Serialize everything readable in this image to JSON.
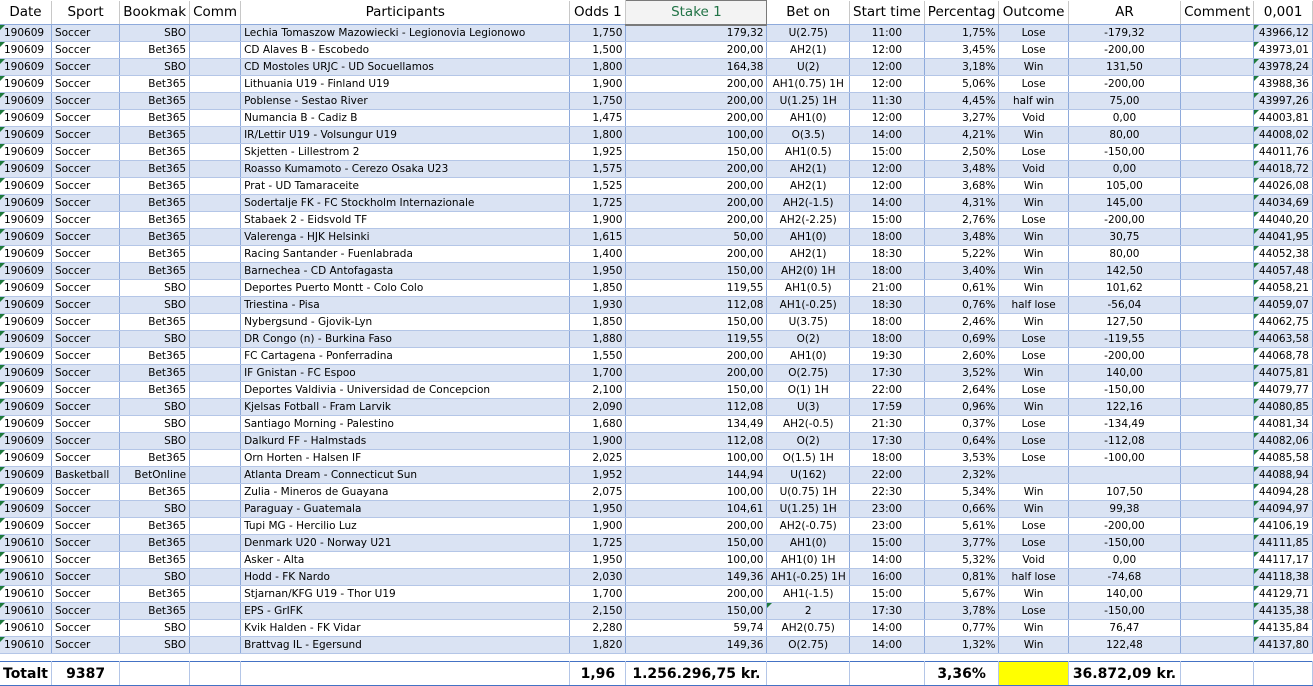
{
  "headers": [
    "Date",
    "Sport",
    "Bookmak",
    "Comm",
    "Participants",
    "Odds 1",
    "Stake 1",
    "Bet on",
    "Start time",
    "Percentag",
    "Outcome",
    "AR",
    "Comment",
    "0,001"
  ],
  "rows": [
    [
      "190609",
      "Soccer",
      "SBO",
      "",
      "Lechia Tomaszow Mazowiecki - Legionovia Legionowo",
      "1,750",
      "179,32",
      "U(2.75)",
      "11:00",
      "1,75%",
      "Lose",
      "-179,32",
      "",
      "43966,12"
    ],
    [
      "190609",
      "Soccer",
      "Bet365",
      "",
      "CD Alaves B - Escobedo",
      "1,500",
      "200,00",
      "AH2(1)",
      "12:00",
      "3,45%",
      "Lose",
      "-200,00",
      "",
      "43973,01"
    ],
    [
      "190609",
      "Soccer",
      "SBO",
      "",
      "CD Mostoles URJC - UD Socuellamos",
      "1,800",
      "164,38",
      "U(2)",
      "12:00",
      "3,18%",
      "Win",
      "131,50",
      "",
      "43978,24"
    ],
    [
      "190609",
      "Soccer",
      "Bet365",
      "",
      "Lithuania U19 - Finland U19",
      "1,900",
      "200,00",
      "AH1(0.75) 1H",
      "12:00",
      "5,06%",
      "Lose",
      "-200,00",
      "",
      "43988,36"
    ],
    [
      "190609",
      "Soccer",
      "Bet365",
      "",
      "Poblense - Sestao River",
      "1,750",
      "200,00",
      "U(1.25) 1H",
      "11:30",
      "4,45%",
      "half win",
      "75,00",
      "",
      "43997,26"
    ],
    [
      "190609",
      "Soccer",
      "Bet365",
      "",
      "Numancia B - Cadiz B",
      "1,475",
      "200,00",
      "AH1(0)",
      "12:00",
      "3,27%",
      "Void",
      "0,00",
      "",
      "44003,81"
    ],
    [
      "190609",
      "Soccer",
      "Bet365",
      "",
      "IR/Lettir U19 - Volsungur U19",
      "1,800",
      "100,00",
      "O(3.5)",
      "14:00",
      "4,21%",
      "Win",
      "80,00",
      "",
      "44008,02"
    ],
    [
      "190609",
      "Soccer",
      "Bet365",
      "",
      "Skjetten - Lillestrom 2",
      "1,925",
      "150,00",
      "AH1(0.5)",
      "15:00",
      "2,50%",
      "Lose",
      "-150,00",
      "",
      "44011,76"
    ],
    [
      "190609",
      "Soccer",
      "Bet365",
      "",
      "Roasso Kumamoto - Cerezo Osaka U23",
      "1,575",
      "200,00",
      "AH2(1)",
      "12:00",
      "3,48%",
      "Void",
      "0,00",
      "",
      "44018,72"
    ],
    [
      "190609",
      "Soccer",
      "Bet365",
      "",
      "Prat - UD Tamaraceite",
      "1,525",
      "200,00",
      "AH2(1)",
      "12:00",
      "3,68%",
      "Win",
      "105,00",
      "",
      "44026,08"
    ],
    [
      "190609",
      "Soccer",
      "Bet365",
      "",
      "Sodertalje FK - FC Stockholm Internazionale",
      "1,725",
      "200,00",
      "AH2(-1.5)",
      "14:00",
      "4,31%",
      "Win",
      "145,00",
      "",
      "44034,69"
    ],
    [
      "190609",
      "Soccer",
      "Bet365",
      "",
      "Stabaek 2 - Eidsvold TF",
      "1,900",
      "200,00",
      "AH2(-2.25)",
      "15:00",
      "2,76%",
      "Lose",
      "-200,00",
      "",
      "44040,20"
    ],
    [
      "190609",
      "Soccer",
      "Bet365",
      "",
      "Valerenga - HJK Helsinki",
      "1,615",
      "50,00",
      "AH1(0)",
      "18:00",
      "3,48%",
      "Win",
      "30,75",
      "",
      "44041,95"
    ],
    [
      "190609",
      "Soccer",
      "Bet365",
      "",
      "Racing Santander - Fuenlabrada",
      "1,400",
      "200,00",
      "AH2(1)",
      "18:30",
      "5,22%",
      "Win",
      "80,00",
      "",
      "44052,38"
    ],
    [
      "190609",
      "Soccer",
      "Bet365",
      "",
      "Barnechea - CD Antofagasta",
      "1,950",
      "150,00",
      "AH2(0) 1H",
      "18:00",
      "3,40%",
      "Win",
      "142,50",
      "",
      "44057,48"
    ],
    [
      "190609",
      "Soccer",
      "SBO",
      "",
      "Deportes Puerto Montt - Colo Colo",
      "1,850",
      "119,55",
      "AH1(0.5)",
      "21:00",
      "0,61%",
      "Win",
      "101,62",
      "",
      "44058,21"
    ],
    [
      "190609",
      "Soccer",
      "SBO",
      "",
      "Triestina - Pisa",
      "1,930",
      "112,08",
      "AH1(-0.25)",
      "18:30",
      "0,76%",
      "half lose",
      "-56,04",
      "",
      "44059,07"
    ],
    [
      "190609",
      "Soccer",
      "Bet365",
      "",
      "Nybergsund - Gjovik-Lyn",
      "1,850",
      "150,00",
      "U(3.75)",
      "18:00",
      "2,46%",
      "Win",
      "127,50",
      "",
      "44062,75"
    ],
    [
      "190609",
      "Soccer",
      "SBO",
      "",
      "DR Congo (n) - Burkina Faso",
      "1,880",
      "119,55",
      "O(2)",
      "18:00",
      "0,69%",
      "Lose",
      "-119,55",
      "",
      "44063,58"
    ],
    [
      "190609",
      "Soccer",
      "Bet365",
      "",
      "FC Cartagena - Ponferradina",
      "1,550",
      "200,00",
      "AH1(0)",
      "19:30",
      "2,60%",
      "Lose",
      "-200,00",
      "",
      "44068,78"
    ],
    [
      "190609",
      "Soccer",
      "Bet365",
      "",
      "IF Gnistan - FC Espoo",
      "1,700",
      "200,00",
      "O(2.75)",
      "17:30",
      "3,52%",
      "Win",
      "140,00",
      "",
      "44075,81"
    ],
    [
      "190609",
      "Soccer",
      "Bet365",
      "",
      "Deportes Valdivia - Universidad de Concepcion",
      "2,100",
      "150,00",
      "O(1) 1H",
      "22:00",
      "2,64%",
      "Lose",
      "-150,00",
      "",
      "44079,77"
    ],
    [
      "190609",
      "Soccer",
      "SBO",
      "",
      "Kjelsas Fotball - Fram Larvik",
      "2,090",
      "112,08",
      "U(3)",
      "17:59",
      "0,96%",
      "Win",
      "122,16",
      "",
      "44080,85"
    ],
    [
      "190609",
      "Soccer",
      "SBO",
      "",
      "Santiago Morning - Palestino",
      "1,680",
      "134,49",
      "AH2(-0.5)",
      "21:30",
      "0,37%",
      "Lose",
      "-134,49",
      "",
      "44081,34"
    ],
    [
      "190609",
      "Soccer",
      "SBO",
      "",
      "Dalkurd FF - Halmstads",
      "1,900",
      "112,08",
      "O(2)",
      "17:30",
      "0,64%",
      "Lose",
      "-112,08",
      "",
      "44082,06"
    ],
    [
      "190609",
      "Soccer",
      "Bet365",
      "",
      "Orn Horten - Halsen IF",
      "2,025",
      "100,00",
      "O(1.5) 1H",
      "18:00",
      "3,53%",
      "Lose",
      "-100,00",
      "",
      "44085,58"
    ],
    [
      "190609",
      "Basketball",
      "BetOnline",
      "",
      "Atlanta Dream - Connecticut Sun",
      "1,952",
      "144,94",
      "U(162)",
      "22:00",
      "2,32%",
      "",
      "",
      "",
      "44088,94"
    ],
    [
      "190609",
      "Soccer",
      "Bet365",
      "",
      "Zulia - Mineros de Guayana",
      "2,075",
      "100,00",
      "U(0.75) 1H",
      "22:30",
      "5,34%",
      "Win",
      "107,50",
      "",
      "44094,28"
    ],
    [
      "190609",
      "Soccer",
      "SBO",
      "",
      "Paraguay - Guatemala",
      "1,950",
      "104,61",
      "U(1.25) 1H",
      "23:00",
      "0,66%",
      "Win",
      "99,38",
      "",
      "44094,97"
    ],
    [
      "190609",
      "Soccer",
      "Bet365",
      "",
      "Tupi MG - Hercilio Luz",
      "1,900",
      "200,00",
      "AH2(-0.75)",
      "23:00",
      "5,61%",
      "Lose",
      "-200,00",
      "",
      "44106,19"
    ],
    [
      "190610",
      "Soccer",
      "Bet365",
      "",
      "Denmark U20 - Norway U21",
      "1,725",
      "150,00",
      "AH1(0)",
      "15:00",
      "3,77%",
      "Lose",
      "-150,00",
      "",
      "44111,85"
    ],
    [
      "190610",
      "Soccer",
      "Bet365",
      "",
      "Asker - Alta",
      "1,950",
      "100,00",
      "AH1(0) 1H",
      "14:00",
      "5,32%",
      "Void",
      "0,00",
      "",
      "44117,17"
    ],
    [
      "190610",
      "Soccer",
      "SBO",
      "",
      "Hodd - FK Nardo",
      "2,030",
      "149,36",
      "AH1(-0.25) 1H",
      "16:00",
      "0,81%",
      "half lose",
      "-74,68",
      "",
      "44118,38"
    ],
    [
      "190610",
      "Soccer",
      "Bet365",
      "",
      "Stjarnan/KFG U19 - Thor U19",
      "1,700",
      "200,00",
      "AH1(-1.5)",
      "15:00",
      "5,67%",
      "Win",
      "140,00",
      "",
      "44129,71"
    ],
    [
      "190610",
      "Soccer",
      "Bet365",
      "",
      "EPS - GrIFK",
      "2,150",
      "150,00",
      "2",
      "17:30",
      "3,78%",
      "Lose",
      "-150,00",
      "",
      "44135,38"
    ],
    [
      "190610",
      "Soccer",
      "SBO",
      "",
      "Kvik Halden - FK Vidar",
      "2,280",
      "59,74",
      "AH2(0.75)",
      "14:00",
      "0,77%",
      "Win",
      "76,47",
      "",
      "44135,84"
    ],
    [
      "190610",
      "Soccer",
      "SBO",
      "",
      "Brattvag IL - Egersund",
      "1,820",
      "149,36",
      "O(2.75)",
      "14:00",
      "1,32%",
      "Win",
      "122,48",
      "",
      "44137,80"
    ]
  ],
  "totals": {
    "label": "Totalt",
    "count": "9387",
    "odds": "1,96",
    "stake": "1.256.296,75 kr.",
    "percentage": "3,36%",
    "ar": "36.872,09 kr."
  },
  "colors": {
    "accent": "#217346",
    "row_band": "#dae3f3",
    "highlight": "#ffff00"
  }
}
